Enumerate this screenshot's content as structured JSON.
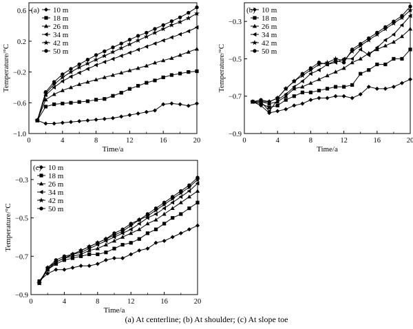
{
  "caption": "(a)  At  centerline;  (b)  At  shoulder;  (c) At slope toe",
  "chart_data": [
    {
      "type": "line",
      "panel_label": "(a)",
      "xlabel": "Time/a",
      "ylabel": "Temperature/°C",
      "xlim": [
        0,
        20
      ],
      "ylim": [
        -1.0,
        0.7
      ],
      "xticks": [
        0,
        4,
        8,
        12,
        16,
        20
      ],
      "yticks": [
        -1.0,
        -0.6,
        -0.2,
        0.2,
        0.6
      ],
      "legend_position": "top-left",
      "series": [
        {
          "name": "10 m",
          "marker": "diamond",
          "x": [
            1,
            2,
            3,
            4,
            5,
            6,
            7,
            8,
            9,
            10,
            11,
            12,
            13,
            14,
            15,
            16,
            17,
            18,
            19,
            20
          ],
          "y": [
            -0.83,
            -0.87,
            -0.87,
            -0.86,
            -0.85,
            -0.84,
            -0.83,
            -0.82,
            -0.81,
            -0.8,
            -0.78,
            -0.76,
            -0.74,
            -0.72,
            -0.7,
            -0.62,
            -0.61,
            -0.62,
            -0.64,
            -0.61
          ]
        },
        {
          "name": "18 m",
          "marker": "square",
          "x": [
            1,
            2,
            3,
            4,
            5,
            6,
            7,
            8,
            9,
            10,
            11,
            12,
            13,
            14,
            15,
            16,
            17,
            18,
            19,
            20
          ],
          "y": [
            -0.83,
            -0.65,
            -0.62,
            -0.61,
            -0.6,
            -0.59,
            -0.58,
            -0.56,
            -0.55,
            -0.51,
            -0.47,
            -0.42,
            -0.38,
            -0.34,
            -0.31,
            -0.27,
            -0.24,
            -0.22,
            -0.2,
            -0.19
          ]
        },
        {
          "name": "26 m",
          "marker": "triangle",
          "x": [
            1,
            2,
            3,
            4,
            5,
            6,
            7,
            8,
            9,
            10,
            11,
            12,
            13,
            14,
            15,
            16,
            17,
            18,
            19,
            20
          ],
          "y": [
            -0.83,
            -0.56,
            -0.49,
            -0.44,
            -0.4,
            -0.36,
            -0.33,
            -0.3,
            -0.27,
            -0.24,
            -0.21,
            -0.18,
            -0.15,
            -0.12,
            -0.08,
            -0.05,
            -0.02,
            0.02,
            0.06,
            0.1
          ]
        },
        {
          "name": "34 m",
          "marker": "left-triangle",
          "x": [
            1,
            2,
            3,
            4,
            5,
            6,
            7,
            8,
            9,
            10,
            11,
            12,
            13,
            14,
            15,
            16,
            17,
            18,
            19,
            20
          ],
          "y": [
            -0.83,
            -0.5,
            -0.4,
            -0.32,
            -0.26,
            -0.21,
            -0.16,
            -0.11,
            -0.07,
            -0.03,
            0.01,
            0.05,
            0.09,
            0.13,
            0.17,
            0.21,
            0.25,
            0.29,
            0.33,
            0.38
          ]
        },
        {
          "name": "42 m",
          "marker": "star",
          "x": [
            1,
            2,
            3,
            4,
            5,
            6,
            7,
            8,
            9,
            10,
            11,
            12,
            13,
            14,
            15,
            16,
            17,
            18,
            19,
            20
          ],
          "y": [
            -0.83,
            -0.48,
            -0.36,
            -0.27,
            -0.2,
            -0.14,
            -0.09,
            -0.04,
            0.01,
            0.06,
            0.11,
            0.16,
            0.21,
            0.26,
            0.31,
            0.36,
            0.41,
            0.45,
            0.5,
            0.56
          ]
        },
        {
          "name": "50 m",
          "marker": "circle",
          "x": [
            1,
            2,
            3,
            4,
            5,
            6,
            7,
            8,
            9,
            10,
            11,
            12,
            13,
            14,
            15,
            16,
            17,
            18,
            19,
            20
          ],
          "y": [
            -0.83,
            -0.46,
            -0.33,
            -0.23,
            -0.16,
            -0.1,
            -0.04,
            0.02,
            0.07,
            0.12,
            0.17,
            0.22,
            0.27,
            0.31,
            0.36,
            0.41,
            0.46,
            0.51,
            0.57,
            0.64
          ]
        }
      ]
    },
    {
      "type": "line",
      "panel_label": "(b)",
      "xlabel": "Time/a",
      "ylabel": "Temperature/°C",
      "xlim": [
        0,
        20
      ],
      "ylim": [
        -0.9,
        -0.2
      ],
      "xticks": [
        0,
        4,
        8,
        12,
        16,
        20
      ],
      "yticks": [
        -0.9,
        -0.7,
        -0.5,
        -0.3
      ],
      "legend_position": "top-left",
      "series": [
        {
          "name": "10 m",
          "marker": "diamond",
          "x": [
            1,
            2,
            3,
            4,
            5,
            6,
            7,
            8,
            9,
            10,
            11,
            12,
            13,
            14,
            15,
            16,
            17,
            18,
            19,
            20
          ],
          "y": [
            -0.73,
            -0.75,
            -0.79,
            -0.78,
            -0.77,
            -0.75,
            -0.74,
            -0.72,
            -0.71,
            -0.71,
            -0.7,
            -0.7,
            -0.71,
            -0.69,
            -0.65,
            -0.66,
            -0.66,
            -0.65,
            -0.63,
            -0.61
          ]
        },
        {
          "name": "18 m",
          "marker": "square",
          "x": [
            1,
            2,
            3,
            4,
            5,
            6,
            7,
            8,
            9,
            10,
            11,
            12,
            13,
            14,
            15,
            16,
            17,
            18,
            19,
            20
          ],
          "y": [
            -0.73,
            -0.74,
            -0.76,
            -0.75,
            -0.72,
            -0.7,
            -0.68,
            -0.68,
            -0.67,
            -0.66,
            -0.65,
            -0.65,
            -0.64,
            -0.58,
            -0.56,
            -0.53,
            -0.53,
            -0.5,
            -0.5,
            -0.45
          ]
        },
        {
          "name": "26 m",
          "marker": "triangle",
          "x": [
            1,
            2,
            3,
            4,
            5,
            6,
            7,
            8,
            9,
            10,
            11,
            12,
            13,
            14,
            15,
            16,
            17,
            18,
            19,
            20
          ],
          "y": [
            -0.73,
            -0.73,
            -0.74,
            -0.73,
            -0.7,
            -0.66,
            -0.65,
            -0.63,
            -0.61,
            -0.59,
            -0.57,
            -0.55,
            -0.52,
            -0.5,
            -0.47,
            -0.45,
            -0.43,
            -0.41,
            -0.38,
            -0.34
          ]
        },
        {
          "name": "34 m",
          "marker": "left-triangle",
          "x": [
            1,
            2,
            3,
            4,
            5,
            6,
            7,
            8,
            9,
            10,
            11,
            12,
            13,
            14,
            15,
            16,
            17,
            18,
            19,
            20
          ],
          "y": [
            -0.73,
            -0.73,
            -0.78,
            -0.72,
            -0.69,
            -0.65,
            -0.62,
            -0.58,
            -0.56,
            -0.53,
            -0.52,
            -0.5,
            -0.5,
            -0.45,
            -0.48,
            -0.44,
            -0.4,
            -0.37,
            -0.32,
            -0.27
          ]
        },
        {
          "name": "42 m",
          "marker": "star",
          "x": [
            1,
            2,
            3,
            4,
            5,
            6,
            7,
            8,
            9,
            10,
            11,
            12,
            13,
            14,
            15,
            16,
            17,
            18,
            19,
            20
          ],
          "y": [
            -0.73,
            -0.73,
            -0.73,
            -0.71,
            -0.66,
            -0.62,
            -0.59,
            -0.56,
            -0.53,
            -0.52,
            -0.5,
            -0.51,
            -0.46,
            -0.43,
            -0.4,
            -0.37,
            -0.34,
            -0.31,
            -0.28,
            -0.24
          ]
        },
        {
          "name": "50 m",
          "marker": "circle",
          "x": [
            1,
            2,
            3,
            4,
            5,
            6,
            7,
            8,
            9,
            10,
            11,
            12,
            13,
            14,
            15,
            16,
            17,
            18,
            19,
            20
          ],
          "y": [
            -0.73,
            -0.72,
            -0.73,
            -0.71,
            -0.66,
            -0.62,
            -0.58,
            -0.55,
            -0.52,
            -0.53,
            -0.51,
            -0.52,
            -0.45,
            -0.42,
            -0.39,
            -0.36,
            -0.33,
            -0.3,
            -0.27,
            -0.22
          ]
        }
      ]
    },
    {
      "type": "line",
      "panel_label": "(c)",
      "xlabel": "Time/a",
      "ylabel": "Temperature/°C",
      "xlim": [
        0,
        20
      ],
      "ylim": [
        -0.9,
        -0.2
      ],
      "xticks": [
        0,
        4,
        8,
        12,
        16,
        20
      ],
      "yticks": [
        -0.9,
        -0.7,
        -0.5,
        -0.3
      ],
      "legend_position": "top-left",
      "series": [
        {
          "name": "10 m",
          "marker": "diamond",
          "x": [
            1,
            2,
            3,
            4,
            5,
            6,
            7,
            8,
            9,
            10,
            11,
            12,
            13,
            14,
            15,
            16,
            17,
            18,
            19,
            20
          ],
          "y": [
            -0.83,
            -0.79,
            -0.77,
            -0.77,
            -0.76,
            -0.75,
            -0.75,
            -0.74,
            -0.72,
            -0.71,
            -0.71,
            -0.69,
            -0.67,
            -0.66,
            -0.63,
            -0.62,
            -0.6,
            -0.58,
            -0.56,
            -0.54
          ]
        },
        {
          "name": "18 m",
          "marker": "square",
          "x": [
            1,
            2,
            3,
            4,
            5,
            6,
            7,
            8,
            9,
            10,
            11,
            12,
            13,
            14,
            15,
            16,
            17,
            18,
            19,
            20
          ],
          "y": [
            -0.83,
            -0.77,
            -0.74,
            -0.72,
            -0.71,
            -0.7,
            -0.69,
            -0.69,
            -0.68,
            -0.66,
            -0.64,
            -0.63,
            -0.61,
            -0.58,
            -0.56,
            -0.53,
            -0.5,
            -0.48,
            -0.45,
            -0.42
          ]
        },
        {
          "name": "26 m",
          "marker": "triangle",
          "x": [
            1,
            2,
            3,
            4,
            5,
            6,
            7,
            8,
            9,
            10,
            11,
            12,
            13,
            14,
            15,
            16,
            17,
            18,
            19,
            20
          ],
          "y": [
            -0.84,
            -0.77,
            -0.73,
            -0.71,
            -0.7,
            -0.69,
            -0.67,
            -0.66,
            -0.64,
            -0.62,
            -0.6,
            -0.58,
            -0.56,
            -0.53,
            -0.51,
            -0.48,
            -0.45,
            -0.42,
            -0.39,
            -0.36
          ]
        },
        {
          "name": "34 m",
          "marker": "left-triangle",
          "x": [
            1,
            2,
            3,
            4,
            5,
            6,
            7,
            8,
            9,
            10,
            11,
            12,
            13,
            14,
            15,
            16,
            17,
            18,
            19,
            20
          ],
          "y": [
            -0.84,
            -0.77,
            -0.73,
            -0.71,
            -0.69,
            -0.68,
            -0.66,
            -0.64,
            -0.62,
            -0.6,
            -0.58,
            -0.56,
            -0.53,
            -0.5,
            -0.48,
            -0.45,
            -0.42,
            -0.39,
            -0.36,
            -0.32
          ]
        },
        {
          "name": "42 m",
          "marker": "star",
          "x": [
            1,
            2,
            3,
            4,
            5,
            6,
            7,
            8,
            9,
            10,
            11,
            12,
            13,
            14,
            15,
            16,
            17,
            18,
            19,
            20
          ],
          "y": [
            -0.84,
            -0.76,
            -0.73,
            -0.71,
            -0.69,
            -0.67,
            -0.65,
            -0.63,
            -0.61,
            -0.59,
            -0.57,
            -0.54,
            -0.51,
            -0.49,
            -0.46,
            -0.43,
            -0.4,
            -0.37,
            -0.34,
            -0.3
          ]
        },
        {
          "name": "50 m",
          "marker": "circle",
          "x": [
            1,
            2,
            3,
            4,
            5,
            6,
            7,
            8,
            9,
            10,
            11,
            12,
            13,
            14,
            15,
            16,
            17,
            18,
            19,
            20
          ],
          "y": [
            -0.84,
            -0.76,
            -0.72,
            -0.7,
            -0.69,
            -0.67,
            -0.65,
            -0.63,
            -0.61,
            -0.58,
            -0.56,
            -0.53,
            -0.51,
            -0.48,
            -0.45,
            -0.42,
            -0.39,
            -0.36,
            -0.33,
            -0.29
          ]
        }
      ]
    }
  ]
}
